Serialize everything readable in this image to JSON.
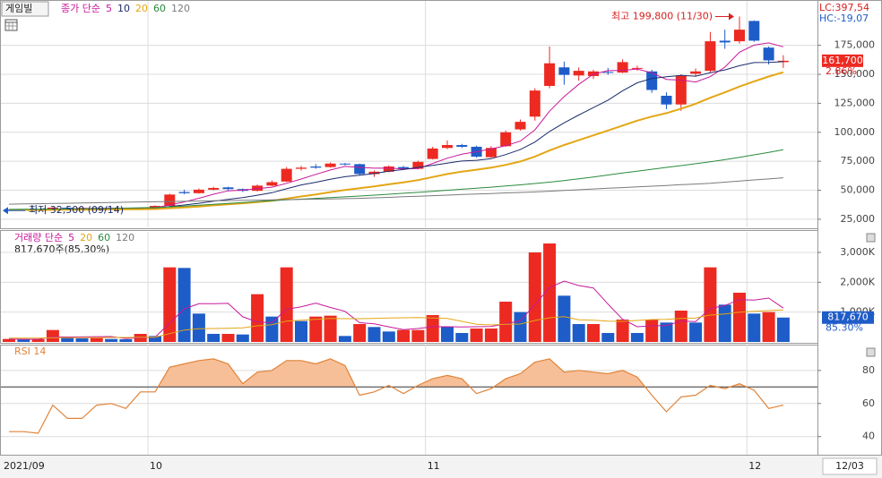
{
  "chart_data": [
    {
      "type": "candlestick",
      "name": "게임빌",
      "legend_label": "종가 단순",
      "hc": "HC:-19,07",
      "lc": "LC:397,54",
      "annotations": {
        "high": "최고 199,800 (11/30)",
        "low": "최저 32,500 (09/14)"
      },
      "price_box": "161,700",
      "change": "2.86%",
      "up_color": "#ec2a22",
      "down_color": "#1e5cc8",
      "open": [
        33200,
        33000,
        33500,
        33200,
        35000,
        34500,
        34800,
        34300,
        34600,
        34400,
        35000,
        36500,
        48500,
        47500,
        50500,
        52500,
        51000,
        49500,
        54000,
        57500,
        68500,
        70500,
        70000,
        73000,
        72500,
        64000,
        66000,
        70000,
        68500,
        77000,
        86500,
        89000,
        87500,
        78500,
        88000,
        102500,
        113500,
        140000,
        156000,
        149000,
        148500,
        152000,
        151500,
        155000,
        152500,
        131500,
        124000,
        150500,
        153000,
        179000,
        178500,
        196000,
        173000,
        160500
      ],
      "high": [
        33500,
        33800,
        33700,
        35500,
        35300,
        35000,
        35000,
        34800,
        34900,
        35000,
        37000,
        47000,
        50500,
        51500,
        53000,
        53000,
        51500,
        55000,
        58500,
        70000,
        71000,
        72500,
        74000,
        73500,
        73000,
        67000,
        71500,
        71000,
        75500,
        87500,
        93000,
        90000,
        88500,
        88000,
        101500,
        111000,
        138000,
        174000,
        161000,
        156000,
        154000,
        155500,
        163000,
        157500,
        154000,
        134500,
        150000,
        155000,
        186500,
        188500,
        199800,
        196500,
        174000,
        166500
      ],
      "low": [
        32500,
        32800,
        33000,
        33000,
        34200,
        34200,
        34100,
        34100,
        34200,
        34200,
        34800,
        36300,
        46500,
        47000,
        50000,
        50000,
        48500,
        49000,
        53500,
        57000,
        67000,
        68500,
        69500,
        71500,
        63000,
        61500,
        65500,
        67500,
        68000,
        76500,
        85500,
        86500,
        78000,
        78000,
        87500,
        101500,
        110000,
        138000,
        141000,
        144500,
        146000,
        149500,
        151000,
        153000,
        134000,
        120000,
        118500,
        148000,
        151500,
        172000,
        176500,
        178000,
        158500,
        155500
      ],
      "close": [
        33000,
        33500,
        33200,
        35000,
        34500,
        34800,
        34300,
        34600,
        34400,
        34800,
        36500,
        46300,
        47500,
        50500,
        52000,
        51000,
        49500,
        54000,
        57000,
        68500,
        69500,
        69500,
        73000,
        72500,
        64000,
        66000,
        70500,
        68500,
        74500,
        86000,
        89000,
        87500,
        79000,
        86500,
        100000,
        109000,
        136000,
        159500,
        149500,
        153000,
        152500,
        151500,
        160500,
        155500,
        136500,
        124000,
        148500,
        152500,
        178500,
        177500,
        188500,
        179000,
        162000,
        161700
      ],
      "series": [
        {
          "name": "5",
          "color": "#c8189b",
          "values": [
            33000,
            33100,
            33100,
            33500,
            33800,
            34200,
            34400,
            34600,
            34500,
            34600,
            34900,
            37300,
            39900,
            43100,
            46600,
            49500,
            50100,
            51400,
            52700,
            56000,
            59700,
            63700,
            67500,
            70600,
            69700,
            69000,
            69200,
            68300,
            68700,
            73100,
            77700,
            81100,
            83200,
            85600,
            88400,
            92400,
            102100,
            118200,
            130800,
            141400,
            150100,
            153200,
            153400,
            154600,
            151300,
            145600,
            145000,
            143400,
            148000,
            156200,
            169100,
            175200,
            177100,
            173700
          ]
        },
        {
          "name": "10",
          "color": "#1b2a6b",
          "values": [
            33000,
            33050,
            33050,
            33250,
            33400,
            33600,
            33800,
            33900,
            34000,
            34200,
            34600,
            35900,
            37300,
            38800,
            40600,
            42200,
            43700,
            45700,
            47900,
            51300,
            54600,
            56900,
            59500,
            61700,
            62900,
            64400,
            66500,
            67900,
            69700,
            71400,
            73400,
            75200,
            75800,
            77200,
            80800,
            85100,
            91600,
            100700,
            108200,
            114900,
            121300,
            127700,
            135800,
            142700,
            146400,
            147900,
            149100,
            148400,
            151300,
            153800,
            157400,
            160100,
            160300,
            160900
          ]
        },
        {
          "name": "20",
          "color": "#e3a614",
          "values": [
            33000,
            33000,
            33000,
            33100,
            33200,
            33300,
            33400,
            33500,
            33500,
            33600,
            33800,
            34500,
            35200,
            36000,
            37000,
            37900,
            38800,
            39800,
            41000,
            42800,
            44600,
            46400,
            48400,
            50300,
            51800,
            53300,
            55100,
            56800,
            58800,
            61400,
            64000,
            66100,
            67700,
            69500,
            71900,
            74800,
            79100,
            84300,
            89000,
            93200,
            97400,
            101500,
            105800,
            110000,
            113600,
            116500,
            120400,
            124600,
            129800,
            134400,
            139400,
            143900,
            148100,
            151800
          ]
        },
        {
          "name": "60",
          "color": "#2b8a3e",
          "values": [
            33500,
            33600,
            33700,
            33800,
            33900,
            34000,
            34200,
            34400,
            34600,
            34900,
            35200,
            35700,
            36300,
            37100,
            37900,
            38700,
            39500,
            40300,
            41000,
            41700,
            42300,
            43000,
            43600,
            44300,
            45000,
            45800,
            46600,
            47400,
            48200,
            49100,
            50000,
            50900,
            51800,
            52700,
            53700,
            54700,
            55800,
            57000,
            58400,
            59900,
            61500,
            63200,
            64900,
            66500,
            68100,
            69700,
            71300,
            72900,
            74600,
            76400,
            78400,
            80500,
            82700,
            85000
          ]
        },
        {
          "name": "120",
          "color": "#7a7a7a",
          "values": [
            38000,
            38200,
            38400,
            38600,
            38800,
            39000,
            39200,
            39400,
            39700,
            39900,
            40100,
            40300,
            40500,
            40700,
            40900,
            41100,
            41300,
            41500,
            41700,
            41900,
            42100,
            42300,
            42500,
            42800,
            43000,
            43500,
            43900,
            44400,
            44900,
            45300,
            45800,
            46300,
            46700,
            47200,
            47700,
            48100,
            48600,
            49200,
            49800,
            50400,
            51100,
            51700,
            52300,
            52900,
            53500,
            54100,
            54800,
            55400,
            56000,
            57000,
            57900,
            58900,
            59800,
            60800
          ]
        }
      ],
      "ylim": [
        18000,
        211000
      ],
      "yticks": [
        {
          "value": 25000,
          "label": "25,000"
        },
        {
          "value": 50000,
          "label": "50,000"
        },
        {
          "value": 75000,
          "label": "75,000"
        },
        {
          "value": 100000,
          "label": "100,000"
        },
        {
          "value": 125000,
          "label": "125,000"
        },
        {
          "value": 150000,
          "label": "150,000"
        },
        {
          "value": 175000,
          "label": "175,000"
        }
      ],
      "grid": true
    },
    {
      "type": "bar",
      "legend_label": "거래량 단순",
      "summary": "817,670주(85,30%)",
      "volume_box": "817,670",
      "change": "85.30%",
      "values": [
        100,
        80,
        90,
        400,
        150,
        120,
        130,
        100,
        90,
        270,
        200,
        2500,
        2480,
        950,
        270,
        270,
        250,
        1600,
        850,
        2500,
        700,
        850,
        880,
        200,
        600,
        500,
        350,
        400,
        400,
        900,
        500,
        300,
        450,
        450,
        1350,
        1000,
        3000,
        3300,
        1550,
        600,
        600,
        300,
        750,
        300,
        750,
        650,
        1050,
        650,
        2500,
        1250,
        1650,
        950,
        1000,
        817.67
      ],
      "series": [
        {
          "name": "5",
          "color": "#c8189b",
          "values": [
            100,
            90,
            90,
            168,
            164,
            168,
            178,
            180,
            118,
            142,
            158,
            632,
            1108,
            1280,
            1280,
            1294,
            844,
            668,
            648,
            1094,
            1180,
            1300,
            1156,
            1026,
            646,
            606,
            506,
            410,
            450,
            510,
            510,
            500,
            510,
            520,
            610,
            710,
            1250,
            1820,
            2040,
            1890,
            1810,
            1270,
            760,
            510,
            540,
            550,
            700,
            680,
            1120,
            1220,
            1420,
            1400,
            1470,
            1134
          ]
        },
        {
          "name": "20",
          "color": "#e3a614",
          "values": [
            130,
            130,
            130,
            140,
            140,
            140,
            140,
            150,
            150,
            160,
            160,
            280,
            400,
            440,
            450,
            460,
            470,
            540,
            580,
            700,
            730,
            760,
            790,
            780,
            780,
            790,
            800,
            810,
            820,
            800,
            790,
            690,
            590,
            570,
            590,
            600,
            720,
            810,
            850,
            740,
            730,
            700,
            690,
            720,
            750,
            760,
            790,
            800,
            900,
            940,
            1000,
            1030,
            1050,
            1070
          ]
        }
      ],
      "legend_only": [
        {
          "name": "60",
          "color": "#2b8a3e"
        },
        {
          "name": "120",
          "color": "#7a7a7a"
        }
      ],
      "ylim": [
        0,
        3600
      ],
      "yticks": [
        {
          "value": 1000,
          "label": "1,000K"
        },
        {
          "value": 2000,
          "label": "2,000K"
        },
        {
          "value": 3000,
          "label": "3,000K"
        }
      ],
      "grid": true
    },
    {
      "type": "area",
      "title": "RSI 14",
      "color": "#f7bf98",
      "line_color": "#e0843a",
      "values": [
        43,
        43,
        42,
        59,
        51,
        51,
        59,
        60,
        57,
        67,
        67,
        82,
        84,
        86,
        87,
        84,
        72,
        79,
        80,
        86,
        86,
        84,
        87,
        83,
        65,
        67,
        71,
        66,
        71,
        75,
        77,
        75,
        66,
        69,
        75,
        78,
        85,
        87,
        79,
        80,
        79,
        78,
        80,
        76,
        65,
        55,
        64,
        65,
        71,
        69,
        72,
        68,
        57,
        59
      ],
      "reference_line": 70,
      "categories": [
        "2021/09",
        null,
        null,
        null,
        null,
        null,
        null,
        null,
        null,
        null,
        "10",
        null,
        null,
        null,
        null,
        null,
        null,
        null,
        null,
        null,
        null,
        null,
        null,
        null,
        null,
        null,
        null,
        null,
        null,
        "11",
        null,
        null,
        null,
        null,
        null,
        null,
        null,
        null,
        null,
        null,
        null,
        null,
        null,
        null,
        null,
        null,
        null,
        null,
        null,
        null,
        null,
        "12",
        null,
        null
      ],
      "last_date": "12/03",
      "ylim": [
        29,
        94
      ],
      "yticks": [
        40,
        60,
        80
      ],
      "grid": true
    }
  ]
}
